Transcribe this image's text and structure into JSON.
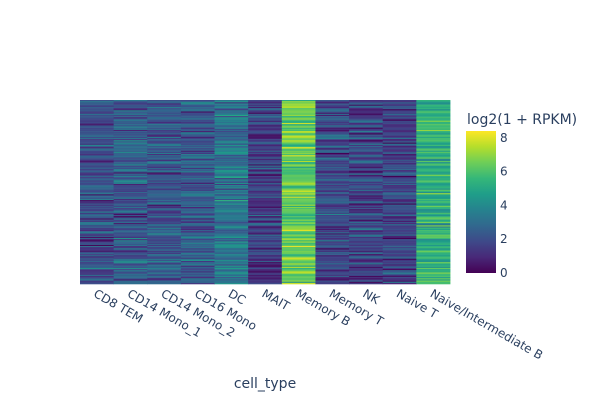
{
  "chart_data": {
    "type": "heatmap",
    "title": "",
    "xlabel": "cell_type",
    "ylabel": "",
    "x_categories": [
      "CD8 TEM",
      "CD14 Mono_1",
      "CD14 Mono_2",
      "CD16 Mono",
      "DC",
      "MAIT",
      "Memory B",
      "Memory T",
      "NK",
      "Naive T",
      "Naive/Intermediate B"
    ],
    "y_tick_labels_shown": false,
    "row_count": 160,
    "column_mean_values": [
      2.0,
      2.4,
      2.3,
      2.4,
      3.2,
      1.4,
      6.4,
      1.9,
      1.8,
      1.7,
      5.3
    ],
    "colorscale": "Viridis",
    "colors": [
      "#440154",
      "#482878",
      "#3e4989",
      "#31688e",
      "#26828e",
      "#1f9e89",
      "#35b779",
      "#6ece58",
      "#b5de2b",
      "#fde725"
    ],
    "colorbar": {
      "title": "log2(1 + RPKM)",
      "range": [
        0,
        8.4
      ],
      "ticks": [
        "0",
        "2",
        "4",
        "6",
        "8"
      ],
      "tick_values": [
        0,
        2,
        4,
        6,
        8
      ]
    }
  }
}
